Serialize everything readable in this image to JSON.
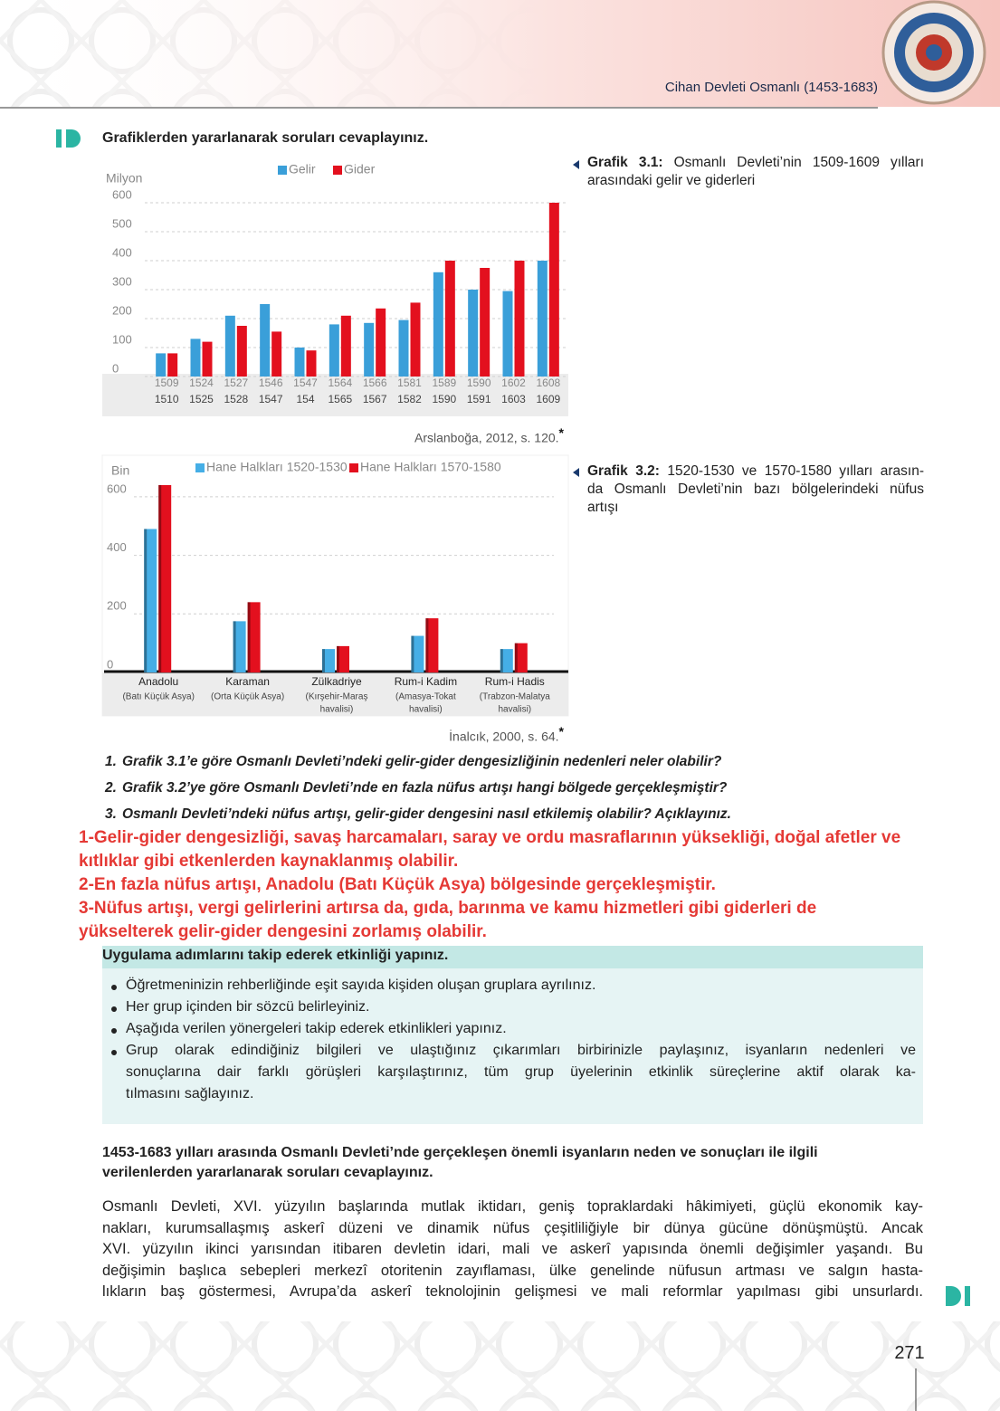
{
  "header": {
    "title": "Cihan Devleti Osmanlı (1453-1683)"
  },
  "section1": {
    "title": "Grafiklerden yararlanarak soruları cevaplayınız."
  },
  "chart_data": [
    {
      "type": "bar",
      "caption_label": "Grafik 3.1:",
      "caption_lines": [
        "Osmanlı Devleti’nin 1509-1609 yılları",
        "arasındaki gelir ve giderleri"
      ],
      "y_label": "Milyon",
      "categories": [
        [
          "1509",
          "1510"
        ],
        [
          "1524",
          "1525"
        ],
        [
          "1527",
          "1528"
        ],
        [
          "1546",
          "1547"
        ],
        [
          "1547",
          "154"
        ],
        [
          "1564",
          "1565"
        ],
        [
          "1566",
          "1567"
        ],
        [
          "1581",
          "1582"
        ],
        [
          "1589",
          "1590"
        ],
        [
          "1590",
          "1591"
        ],
        [
          "1602",
          "1603"
        ],
        [
          "1608",
          "1609"
        ]
      ],
      "series": [
        {
          "name": "Gelir",
          "color": "#3a9fd9",
          "values": [
            80,
            130,
            210,
            250,
            100,
            180,
            185,
            195,
            360,
            300,
            295,
            400
          ]
        },
        {
          "name": "Gider",
          "color": "#e3101e",
          "values": [
            80,
            120,
            175,
            155,
            90,
            210,
            235,
            255,
            400,
            375,
            400,
            600
          ]
        }
      ],
      "ylim": [
        0,
        650
      ],
      "yticks": [
        0,
        100,
        200,
        300,
        400,
        500,
        600
      ],
      "grid": true,
      "source": "Arslanboğa, 2012, s. 120.",
      "source_mark": "*"
    },
    {
      "type": "bar",
      "caption_label": "Grafik 3.2:",
      "caption_lines": [
        "1520-1530 ve 1570-1580 yılları arasın-",
        "da Osmanlı Devleti’nin bazı bölgelerindeki nüfus",
        "artışı"
      ],
      "y_label": "Bin",
      "categories": [
        [
          "Anadolu",
          "(Batı Küçük Asya)"
        ],
        [
          "Karaman",
          "(Orta Küçük Asya)"
        ],
        [
          "Zülkadriye",
          "(Kırşehir-Maraş",
          "havalisi)"
        ],
        [
          "Rum-i Kadim",
          "(Amasya-Tokat",
          "havalisi)"
        ],
        [
          "Rum-i Hadis",
          "(Trabzon-Malatya",
          "havalisi)"
        ]
      ],
      "series": [
        {
          "name": "Hane Halkları 1520-1530",
          "color": "#45aee6",
          "values": [
            490,
            175,
            80,
            125,
            80
          ]
        },
        {
          "name": "Hane Halkları 1570-1580",
          "color": "#e3101e",
          "values": [
            640,
            240,
            90,
            185,
            100
          ]
        }
      ],
      "ylim": [
        0,
        680
      ],
      "yticks": [
        0,
        200,
        400,
        600
      ],
      "grid": true,
      "source": "İnalcık, 2000, s. 64.",
      "source_mark": "*"
    }
  ],
  "questions": [
    {
      "number": "1.",
      "text": "Grafik 3.1’e göre Osmanlı Devleti’ndeki gelir-gider dengesizliğinin nedenleri neler olabilir?"
    },
    {
      "number": "2.",
      "text": "Grafik 3.2’ye göre Osmanlı Devleti’nde en fazla nüfus artışı hangi bölgede gerçekleşmiştir?"
    },
    {
      "number": "3.",
      "text": "Osmanlı Devleti’ndeki nüfus artışı, gelir-gider dengesini nasıl etkilemiş olabilir? Açıklayınız."
    }
  ],
  "answers": [
    "1-Gelir-gider dengesizliği, savaş harcamaları, saray ve ordu masraflarının yüksekliği, doğal afetler ve",
    "kıtlıklar gibi etkenlerden kaynaklanmış olabilir.",
    "2-En fazla nüfus artışı, Anadolu (Batı Küçük Asya) bölgesinde gerçekleşmiştir.",
    "3-Nüfus artışı, vergi gelirlerini artırsa da, gıda, barınma ve kamu hizmetleri gibi giderleri de",
    "yükselterek gelir-gider dengesini zorlamış olabilir."
  ],
  "activity": {
    "title": "Uygulama adımlarını takip ederek etkinliği yapınız.",
    "bullets": [
      [
        "Öğretmeninizin rehberliğinde eşit sayıda kişiden oluşan gruplara ayrılınız."
      ],
      [
        "Her grup içinden bir sözcü belirleyiniz."
      ],
      [
        "Aşağıda verilen yönergeleri takip ederek etkinlikleri yapınız."
      ],
      [
        "Grup olarak edindiğiniz bilgileri ve ulaştığınız çıkarımları birbirinizle paylaşınız, isyanların nedenleri ve",
        "sonuçlarına dair farklı görüşleri karşılaştırınız, tüm grup üyelerinin etkinlik süreçlerine aktif olarak ka-",
        "tılmasını sağlayınız."
      ]
    ]
  },
  "section2": {
    "title_lines": [
      "1453-1683 yılları arasında Osmanlı Devleti’nde gerçekleşen önemli isyanların neden ve sonuçları ile ilgili",
      "verilenlerden yararlanarak soruları cevaplayınız."
    ],
    "paragraph_lines": [
      "Osmanlı Devleti, XVI. yüzyılın başlarında mutlak iktidarı, geniş topraklardaki hâkimiyeti, güçlü ekonomik kay-",
      "nakları, kurumsallaşmış askerî düzeni ve dinamik nüfus çeşitliliğiyle bir dünya gücüne dönüşmüştü. Ancak",
      "XVI. yüzyılın ikinci yarısından itibaren devletin idari, mali ve askerî yapısında önemli değişimler yaşandı. Bu",
      "değişimin başlıca sebepleri merkezî otoritenin zayıflaması, ülke genelinde nüfusun artması ve salgın hasta-",
      "lıkların baş göstermesi, Avrupa’da askerî teknolojinin gelişmesi ve mali reformlar yapılması gibi unsurlardı."
    ]
  },
  "page_number": "271"
}
